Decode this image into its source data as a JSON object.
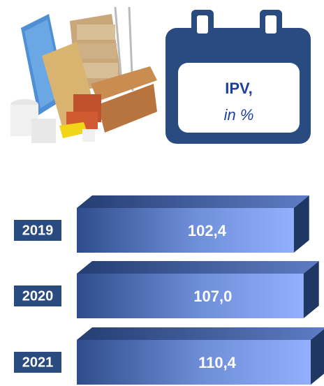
{
  "chart_data": {
    "type": "bar",
    "orientation": "horizontal",
    "title": "IPV,",
    "subtitle": "in %",
    "categories": [
      "2019",
      "2020",
      "2021"
    ],
    "values": [
      102.4,
      107.0,
      110.4
    ],
    "value_labels": [
      "102,4",
      "107,0",
      "110,4"
    ],
    "color": "#7d9be6"
  }
}
